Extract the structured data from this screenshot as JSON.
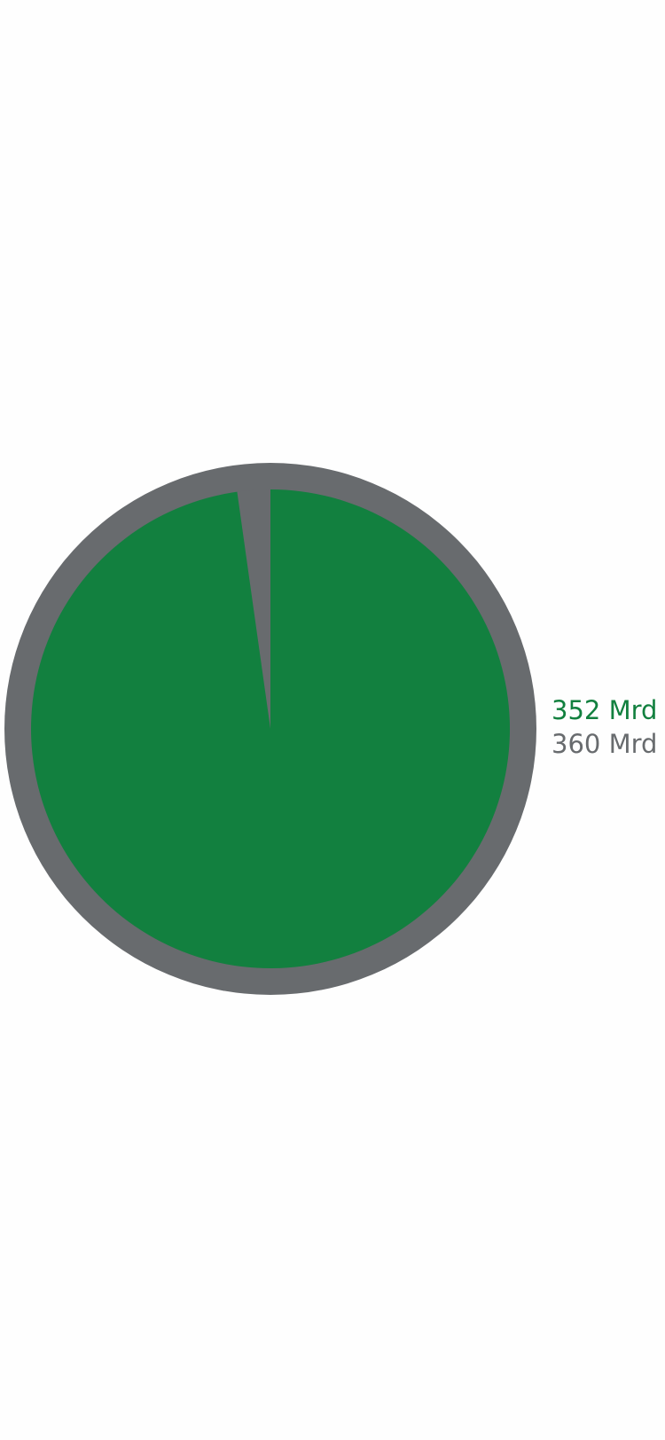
{
  "colors": {
    "primary": "#12803f",
    "total": "#686b6e",
    "background": "#fefefe"
  },
  "chart_data": {
    "type": "pie",
    "series": [
      {
        "label": "352 Mrd",
        "value": 352,
        "color": "#12803f"
      },
      {
        "label": "360 Mrd",
        "value": 360,
        "color": "#686b6e"
      }
    ]
  }
}
